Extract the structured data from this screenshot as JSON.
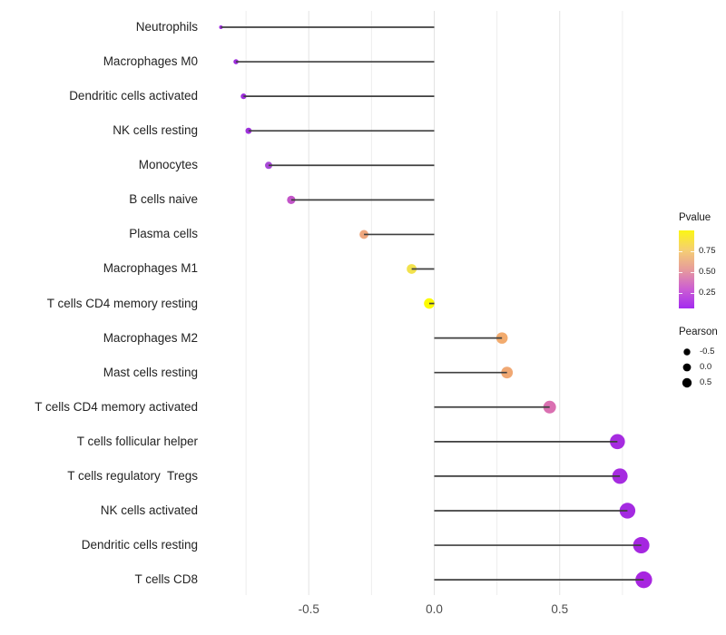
{
  "chart_data": {
    "type": "bar",
    "variant": "horizontal-lollipop",
    "title": "",
    "xlabel": "",
    "ylabel": "",
    "xlim": [
      -0.92,
      0.92
    ],
    "grid": "vertical-only",
    "baseline": 0,
    "x_ticks": [
      {
        "value": -0.5,
        "label": "-0.5"
      },
      {
        "value": 0.0,
        "label": "0.0"
      },
      {
        "value": 0.5,
        "label": "0.5"
      }
    ],
    "x_gridlines_minor": [
      -0.75,
      -0.25,
      0.25,
      0.75
    ],
    "x_gridlines_major": [
      -0.5,
      0.0,
      0.5
    ],
    "rows": [
      {
        "label": "Neutrophils",
        "pearson": -0.85,
        "r": 2.0,
        "color": "#9E2BE0"
      },
      {
        "label": "Macrophages M0",
        "pearson": -0.79,
        "r": 2.8,
        "color": "#9C2BDC"
      },
      {
        "label": "Dendritic cells activated",
        "pearson": -0.76,
        "r": 3.1,
        "color": "#9D2EDC"
      },
      {
        "label": "NK cells resting",
        "pearson": -0.74,
        "r": 3.4,
        "color": "#9E31DC"
      },
      {
        "label": "Monocytes",
        "pearson": -0.66,
        "r": 4.0,
        "color": "#A849D7"
      },
      {
        "label": "B cells naive",
        "pearson": -0.57,
        "r": 4.6,
        "color": "#C355C9"
      },
      {
        "label": "Plasma cells",
        "pearson": -0.28,
        "r": 4.9,
        "color": "#EFA77E"
      },
      {
        "label": "Macrophages M1",
        "pearson": -0.09,
        "r": 5.4,
        "color": "#F2E24D"
      },
      {
        "label": "T cells CD4 memory resting",
        "pearson": -0.02,
        "r": 5.8,
        "color": "#FCFB02"
      },
      {
        "label": "Macrophages M2",
        "pearson": 0.27,
        "r": 6.3,
        "color": "#F2AB6E"
      },
      {
        "label": "Mast cells resting",
        "pearson": 0.29,
        "r": 6.4,
        "color": "#F0A873"
      },
      {
        "label": "T cells CD4 memory activated",
        "pearson": 0.46,
        "r": 7.0,
        "color": "#DA70B1"
      },
      {
        "label": "T cells follicular helper",
        "pearson": 0.73,
        "r": 8.3,
        "color": "#A62CE0"
      },
      {
        "label": "T cells regulatory  Tregs",
        "pearson": 0.74,
        "r": 8.5,
        "color": "#A62CE0"
      },
      {
        "label": "NK cells activated",
        "pearson": 0.77,
        "r": 8.7,
        "color": "#A42AE1"
      },
      {
        "label": "Dendritic cells resting",
        "pearson": 0.825,
        "r": 9.0,
        "color": "#A527E0"
      },
      {
        "label": "T cells CD8",
        "pearson": 0.835,
        "r": 9.2,
        "color": "#A826E0"
      }
    ]
  },
  "legend": {
    "pvalue": {
      "title": "Pvalue",
      "ticks": [
        "0.75",
        "0.50",
        "0.25"
      ],
      "gradient_bottom_to_top": [
        "#A32BEF",
        "#CC5ED2",
        "#E79C9B",
        "#F5CF72",
        "#FBF614"
      ]
    },
    "pearson": {
      "title": "Pearson",
      "dot_color": "#000000",
      "entries": [
        {
          "label": "-0.5",
          "r": 3.7
        },
        {
          "label": "0.0",
          "r": 4.4
        },
        {
          "label": "0.5",
          "r": 5.2
        }
      ]
    }
  },
  "style_colors": {
    "stem": "#3f3f3f",
    "grid_minor": "#EDEDED",
    "grid_major": "#E3E3E3",
    "axis_text": "#4d4d4d"
  }
}
